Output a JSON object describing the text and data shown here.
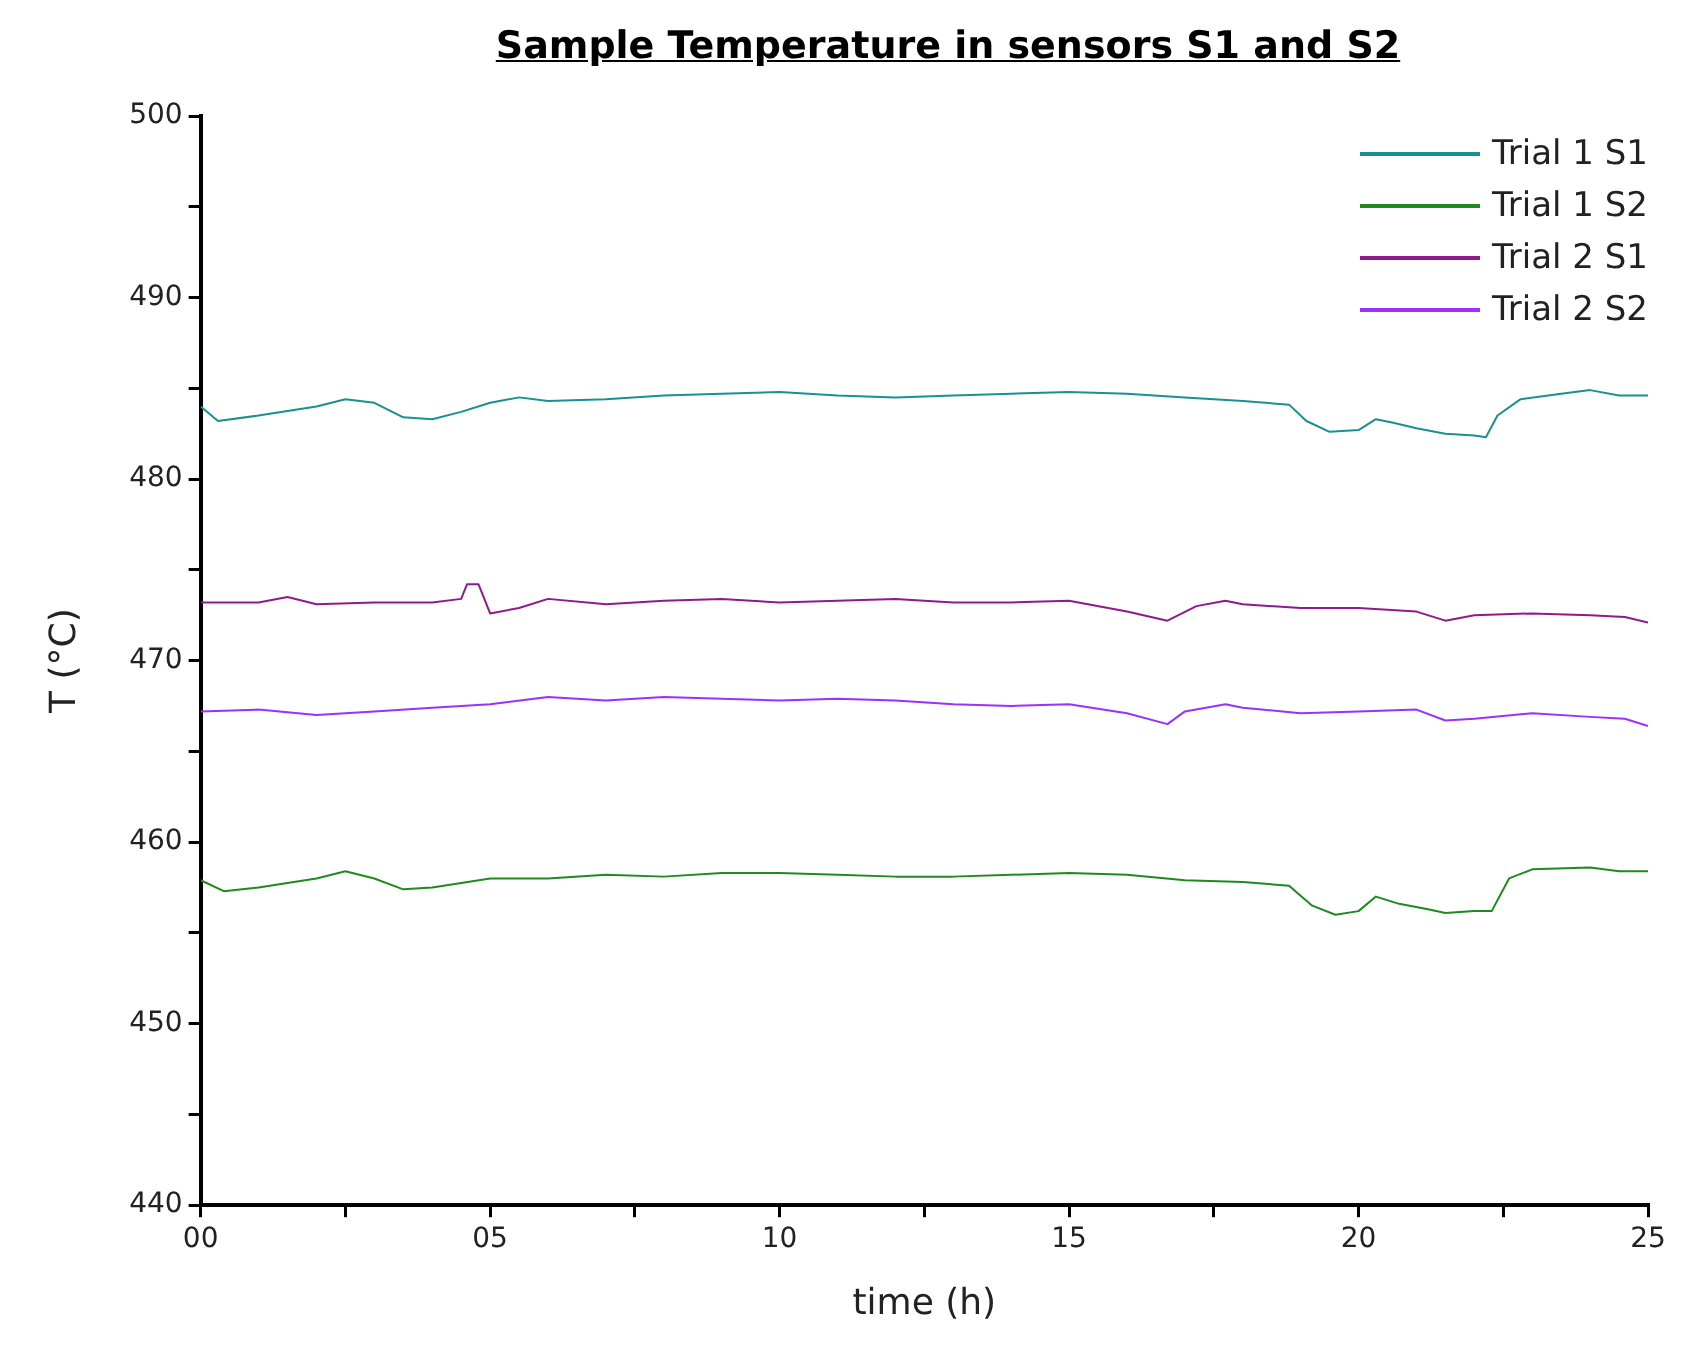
{
  "chart_data": {
    "type": "line",
    "title": "Sample Temperature in sensors S1 and S2",
    "xlabel": "time (h)",
    "ylabel": "T (°C)",
    "xlim": [
      0,
      25
    ],
    "ylim": [
      440,
      500
    ],
    "xticks": [
      {
        "value": 0,
        "label": "00"
      },
      {
        "value": 2.5,
        "label": null
      },
      {
        "value": 5,
        "label": "05"
      },
      {
        "value": 7.5,
        "label": null
      },
      {
        "value": 10,
        "label": "10"
      },
      {
        "value": 12.5,
        "label": null
      },
      {
        "value": 15,
        "label": "15"
      },
      {
        "value": 17.5,
        "label": null
      },
      {
        "value": 20,
        "label": "20"
      },
      {
        "value": 22.5,
        "label": null
      },
      {
        "value": 25,
        "label": "25"
      }
    ],
    "yticks": [
      440,
      {
        "value": 445,
        "label": null
      },
      450,
      {
        "value": 455,
        "label": null
      },
      460,
      {
        "value": 465,
        "label": null
      },
      470,
      {
        "value": 475,
        "label": null
      },
      480,
      {
        "value": 485,
        "label": null
      },
      490,
      {
        "value": 495,
        "label": null
      },
      500
    ],
    "grid": false,
    "legend": "top right",
    "marker": "none",
    "line_style": "solid",
    "series": [
      {
        "name": "Trial 1 S1",
        "color": "#1a9090",
        "x": [
          0,
          0.3,
          1,
          2,
          2.5,
          3,
          3.5,
          4,
          4.5,
          5,
          5.5,
          6,
          7,
          8,
          9,
          10,
          11,
          12,
          13,
          14,
          15,
          16,
          17,
          18,
          18.8,
          19.1,
          19.5,
          20,
          20.3,
          20.6,
          21,
          21.5,
          22,
          22.2,
          22.4,
          22.8,
          23.5,
          24,
          24.5,
          25
        ],
        "values": [
          484.0,
          483.2,
          483.5,
          484.0,
          484.4,
          484.2,
          483.4,
          483.3,
          483.7,
          484.2,
          484.5,
          484.3,
          484.4,
          484.6,
          484.7,
          484.8,
          484.6,
          484.5,
          484.6,
          484.7,
          484.8,
          484.7,
          484.5,
          484.3,
          484.1,
          483.2,
          482.6,
          482.7,
          483.3,
          483.1,
          482.8,
          482.5,
          482.4,
          482.3,
          483.5,
          484.4,
          484.7,
          484.9,
          484.6,
          484.6
        ]
      },
      {
        "name": "Trial 1 S2",
        "color": "#1f8a1f",
        "x": [
          0,
          0.4,
          1,
          2,
          2.5,
          3,
          3.5,
          4,
          5,
          6,
          7,
          8,
          9,
          10,
          11,
          12,
          13,
          14,
          15,
          16,
          17,
          18,
          18.8,
          19.2,
          19.6,
          20,
          20.3,
          20.7,
          21.2,
          21.5,
          22,
          22.3,
          22.6,
          23,
          24,
          24.5,
          25
        ],
        "values": [
          457.9,
          457.3,
          457.5,
          458.0,
          458.4,
          458.0,
          457.4,
          457.5,
          458.0,
          458.0,
          458.2,
          458.1,
          458.3,
          458.3,
          458.2,
          458.1,
          458.1,
          458.2,
          458.3,
          458.2,
          457.9,
          457.8,
          457.6,
          456.5,
          456.0,
          456.2,
          457.0,
          456.6,
          456.3,
          456.1,
          456.2,
          456.2,
          458.0,
          458.5,
          458.6,
          458.4,
          458.4
        ]
      },
      {
        "name": "Trial 2 S1",
        "color": "#8e1a8e",
        "x": [
          0,
          1,
          1.5,
          2,
          3,
          4,
          4.5,
          4.6,
          4.8,
          5.0,
          5.5,
          6,
          7,
          8,
          9,
          10,
          11,
          12,
          13,
          14,
          15,
          16,
          16.7,
          17.2,
          17.7,
          18,
          19,
          20,
          21,
          21.5,
          22,
          23,
          24,
          24.6,
          25
        ],
        "values": [
          473.2,
          473.2,
          473.5,
          473.1,
          473.2,
          473.2,
          473.4,
          474.2,
          474.2,
          472.6,
          472.9,
          473.4,
          473.1,
          473.3,
          473.4,
          473.2,
          473.3,
          473.4,
          473.2,
          473.2,
          473.3,
          472.7,
          472.2,
          473.0,
          473.3,
          473.1,
          472.9,
          472.9,
          472.7,
          472.2,
          472.5,
          472.6,
          472.5,
          472.4,
          472.1
        ]
      },
      {
        "name": "Trial 2 S2",
        "color": "#9b30ff",
        "x": [
          0,
          1,
          2,
          3,
          4,
          5,
          6,
          7,
          8,
          9,
          10,
          11,
          12,
          13,
          14,
          15,
          16,
          16.7,
          17,
          17.7,
          18,
          19,
          20,
          21,
          21.5,
          22,
          23,
          24,
          24.6,
          25
        ],
        "values": [
          467.2,
          467.3,
          467.0,
          467.2,
          467.4,
          467.6,
          468.0,
          467.8,
          468.0,
          467.9,
          467.8,
          467.9,
          467.8,
          467.6,
          467.5,
          467.6,
          467.1,
          466.5,
          467.2,
          467.6,
          467.4,
          467.1,
          467.2,
          467.3,
          466.7,
          466.8,
          467.1,
          466.9,
          466.8,
          466.4
        ]
      }
    ]
  }
}
